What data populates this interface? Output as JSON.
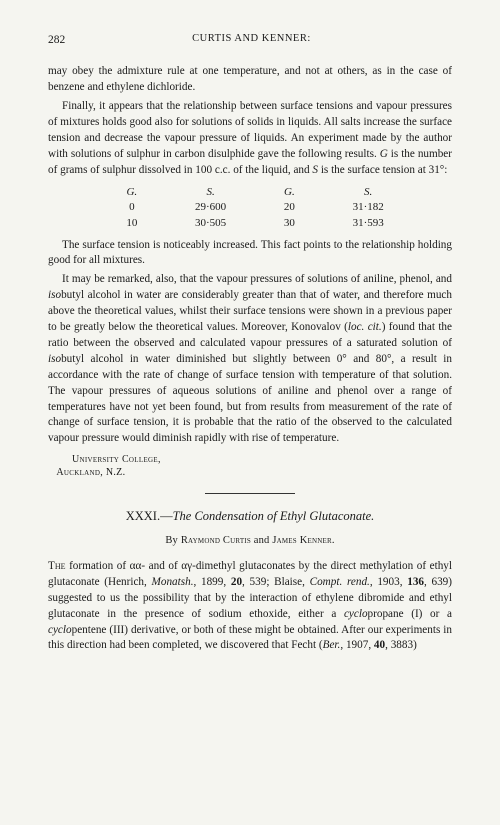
{
  "page_number": "282",
  "running_head": "CURTIS AND KENNER:",
  "para1": "may obey the admixture rule at one temperature, and not at others, as in the case of benzene and ethylene dichloride.",
  "para2_pre": "Finally, it appears that the relationship between surface tensions and vapour pressures of mixtures holds good also for solutions of solids in liquids. All salts increase the surface tension and decrease the vapour pressure of liquids. An experiment made by the author with solutions of sulphur in carbon disulphide gave the following results. ",
  "para2_g": "G",
  "para2_mid": " is the number of grams of sulphur dissolved in 100 c.c. of the liquid, and ",
  "para2_s": "S",
  "para2_post": " is the surface tension at 31°:",
  "table": {
    "header": {
      "g": "G.",
      "s": "S.",
      "g2": "G.",
      "s2": "S."
    },
    "rows": [
      {
        "g": "0",
        "s": "29·600",
        "g2": "20",
        "s2": "31·182"
      },
      {
        "g": "10",
        "s": "30·505",
        "g2": "30",
        "s2": "31·593"
      }
    ]
  },
  "para3": "The surface tension is noticeably increased. This fact points to the relationship holding good for all mixtures.",
  "para4_pre": "It may be remarked, also, that the vapour pressures of solutions of aniline, phenol, and ",
  "para4_iso1": "iso",
  "para4_mid1": "butyl alcohol in water are considerably greater than that of water, and therefore much above the theoretical values, whilst their surface tensions were shown in a previous paper to be greatly below the theoretical values. Moreover, Konovalov (",
  "para4_loc": "loc. cit.",
  "para4_mid2": ") found that the ratio between the observed and calculated vapour pressures of a saturated solution of ",
  "para4_iso2": "iso",
  "para4_post": "butyl alcohol in water diminished but slightly between 0° and 80°, a result in accordance with the rate of change of surface tension with temperature of that solution. The vapour pressures of aqueous solutions of aniline and phenol over a range of temperatures have not yet been found, but from results from measurement of the rate of change of surface tension, it is probable that the ratio of the observed to the calculated vapour pressure would diminish rapidly with rise of temperature.",
  "affiliation_line1": "University College,",
  "affiliation_line2": "Auckland, N.Z.",
  "article_number": "XXXI.",
  "article_title": "The Condensation of Ethyl Glutaconate.",
  "byline_by": "By ",
  "byline_author1": "Raymond Curtis",
  "byline_and": " and ",
  "byline_author2": "James Kenner",
  "byline_period": ".",
  "para5_pre": "The",
  "para5_text1": " formation of αα- and of αγ-dimethyl glutaconates by the direct methylation of ethyl glutaconate (Henrich, ",
  "para5_j1": "Monatsh.",
  "para5_text2": ", 1899, ",
  "para5_b1": "20",
  "para5_text3": ", 539; Blaise, ",
  "para5_j2": "Compt. rend.",
  "para5_text4": ", 1903, ",
  "para5_b2": "136",
  "para5_text5": ", 639) suggested to us the possibility that by the interaction of ethylene dibromide and ethyl glutaconate in the presence of sodium ethoxide, either a ",
  "para5_cyclo1": "cyclo",
  "para5_text6": "propane (I) or a ",
  "para5_cyclo2": "cyclo",
  "para5_text7": "pentene (III) derivative, or both of these might be obtained. After our experiments in this direction had been completed, we discovered that Fecht (",
  "para5_j3": "Ber.",
  "para5_text8": ", 1907, ",
  "para5_b3": "40",
  "para5_text9": ", 3883)"
}
